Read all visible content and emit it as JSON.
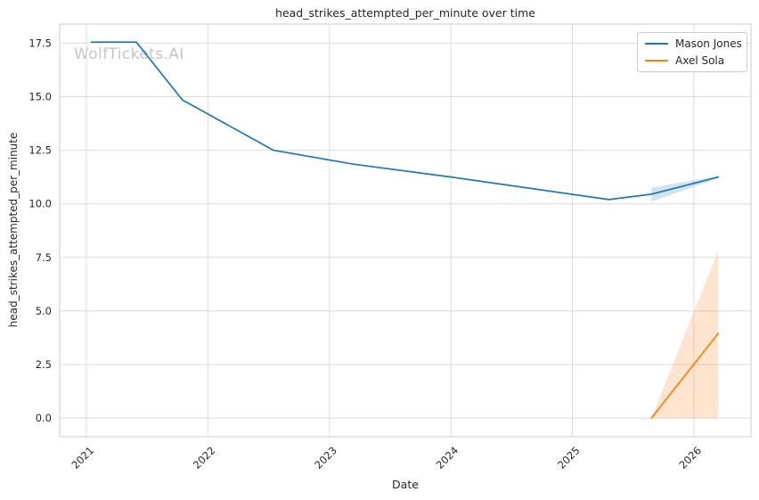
{
  "chart_data": {
    "type": "line",
    "title": "head_strikes_attempted_per_minute over time",
    "xlabel": "Date",
    "ylabel": "head_strikes_attempted_per_minute",
    "watermark": "WolfTickets.AI",
    "grid": true,
    "background": "#ffffff",
    "grid_color": "#dcdcdc",
    "spine_color": "#cccccc",
    "text_color": "#262626",
    "xlim": [
      2020.78,
      2026.47
    ],
    "ylim": [
      -0.87,
      18.39
    ],
    "x_ticks": [
      {
        "label": "2021",
        "value": 2021
      },
      {
        "label": "2022",
        "value": 2022
      },
      {
        "label": "2023",
        "value": 2023
      },
      {
        "label": "2024",
        "value": 2024
      },
      {
        "label": "2025",
        "value": 2025
      },
      {
        "label": "2026",
        "value": 2026
      }
    ],
    "y_ticks": [
      {
        "label": "0.0",
        "value": 0
      },
      {
        "label": "2.5",
        "value": 2.5
      },
      {
        "label": "5.0",
        "value": 5
      },
      {
        "label": "7.5",
        "value": 7.5
      },
      {
        "label": "10.0",
        "value": 10
      },
      {
        "label": "12.5",
        "value": 12.5
      },
      {
        "label": "15.0",
        "value": 15
      },
      {
        "label": "17.5",
        "value": 17.5
      }
    ],
    "legend": {
      "position": "upper right",
      "entries": [
        {
          "label": "Mason Jones",
          "color": "#1f77b4"
        },
        {
          "label": "Axel Sola",
          "color": "#ff7f0e"
        }
      ]
    },
    "series": [
      {
        "name": "Mason Jones",
        "color": "#1f77b4",
        "x": [
          2021.04,
          2021.41,
          2021.79,
          2022.54,
          2023.2,
          2024.0,
          2025.3,
          2025.65,
          2026.2
        ],
        "y": [
          17.55,
          17.55,
          14.85,
          12.5,
          11.85,
          11.25,
          10.2,
          10.45,
          11.25
        ],
        "ci_band": {
          "x": [
            2025.65,
            2026.2
          ],
          "upper": [
            10.75,
            11.3
          ],
          "lower": [
            10.1,
            11.2
          ]
        }
      },
      {
        "name": "Axel Sola",
        "color": "#ff7f0e",
        "x": [
          2025.65,
          2026.2
        ],
        "y": [
          0.0,
          3.95
        ],
        "ci_band": {
          "x": [
            2025.65,
            2026.2
          ],
          "upper": [
            0.0,
            7.8
          ],
          "lower": [
            0.0,
            0.0
          ]
        }
      }
    ]
  }
}
